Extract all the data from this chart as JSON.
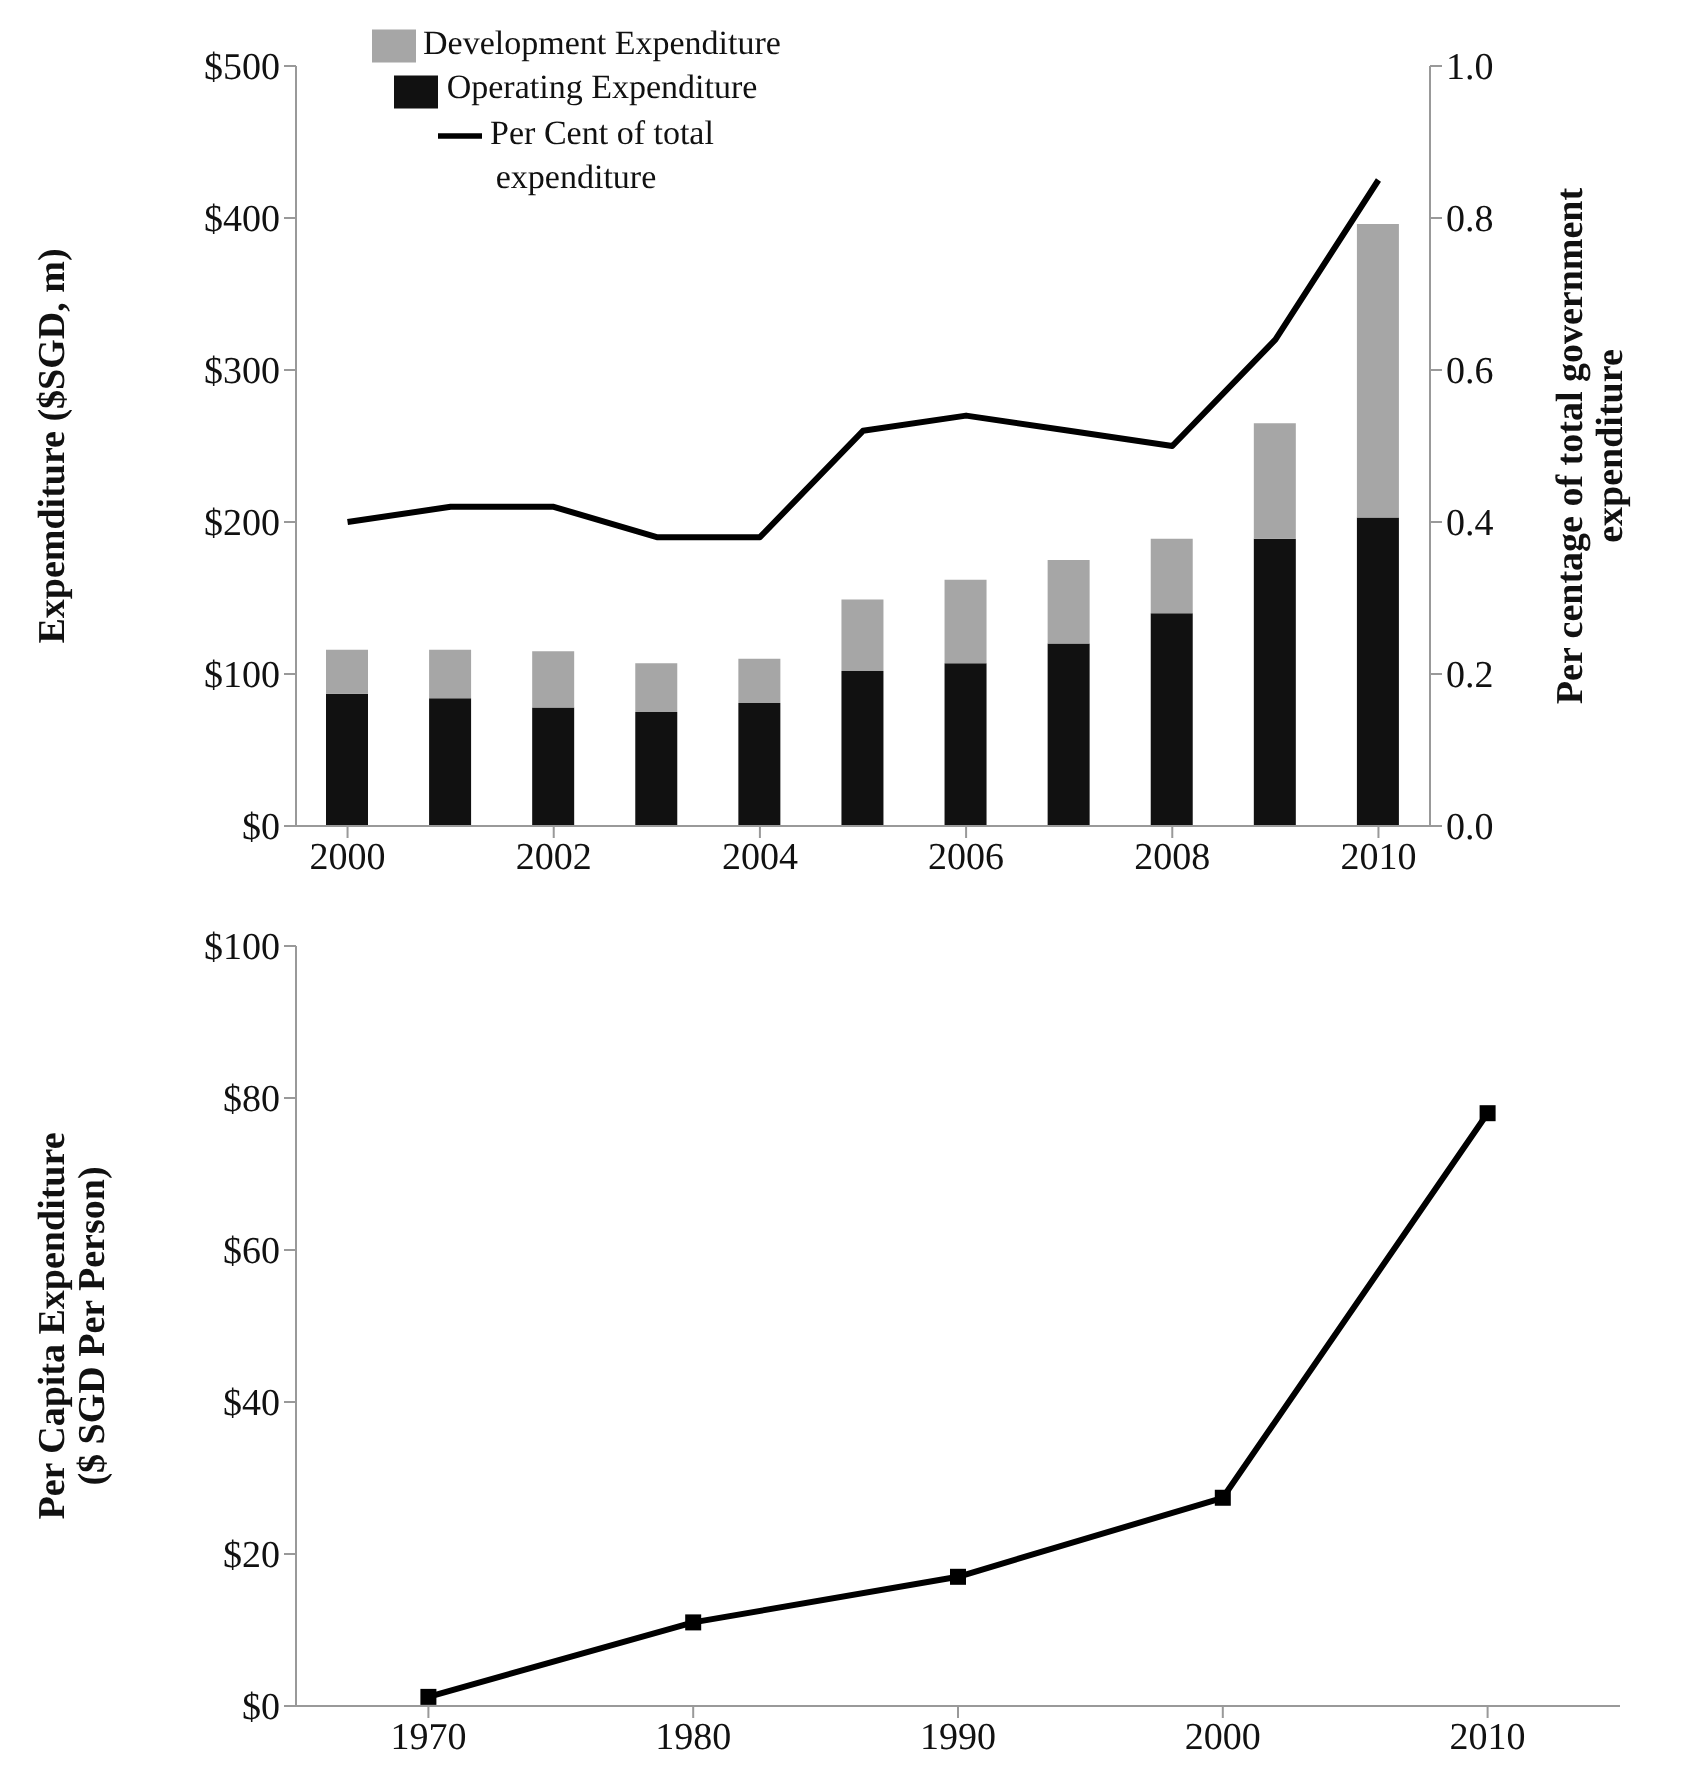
{
  "chart_data": [
    {
      "type": "bar",
      "stacked": true,
      "ylabel": "Expemditure ($SGD, m)",
      "y2label": "Per centage of total government expenditure",
      "x": [
        2000,
        2001,
        2002,
        2003,
        2004,
        2005,
        2006,
        2007,
        2008,
        2009,
        2010
      ],
      "xlim": [
        1999.5,
        2010.5
      ],
      "xticks": [
        2000,
        2002,
        2004,
        2006,
        2008,
        2010
      ],
      "ylim": [
        0,
        500
      ],
      "yticks": [
        {
          "value": 0,
          "label": "$0"
        },
        {
          "value": 100,
          "label": "$100"
        },
        {
          "value": 200,
          "label": "$200"
        },
        {
          "value": 300,
          "label": "$300"
        },
        {
          "value": 400,
          "label": "$400"
        },
        {
          "value": 500,
          "label": "$500"
        }
      ],
      "y2lim": [
        0,
        1
      ],
      "y2ticks": [
        {
          "value": 0,
          "label": "0.0"
        },
        {
          "value": 0.2,
          "label": "0.2"
        },
        {
          "value": 0.4,
          "label": "0.4"
        },
        {
          "value": 0.6,
          "label": "0.6"
        },
        {
          "value": 0.8,
          "label": "0.8"
        },
        {
          "value": 1,
          "label": "1.0"
        }
      ],
      "legend": "top left",
      "grid": false,
      "series": [
        {
          "name": "Operating Expenditure",
          "color": "#111111",
          "values": [
            87,
            84,
            78,
            75,
            81,
            102,
            107,
            120,
            140,
            189,
            203
          ]
        },
        {
          "name": "Development Expenditure",
          "color": "#a6a6a6",
          "values": [
            29,
            32,
            37,
            32,
            29,
            47,
            55,
            55,
            49,
            76,
            193
          ]
        },
        {
          "name": "Per Cent of total expenditure",
          "type": "line",
          "axis": "y2",
          "color": "#000000",
          "values": [
            0.4,
            0.42,
            0.42,
            0.38,
            0.38,
            0.52,
            0.54,
            0.52,
            0.5,
            0.64,
            0.85
          ]
        }
      ]
    },
    {
      "type": "line",
      "ylabel": "Per Capita Expenditure ($ SGD Per Person)",
      "marker": "square",
      "grid": false,
      "x": [
        1970,
        1980,
        1990,
        2000,
        2010
      ],
      "xlim": [
        1965,
        2015
      ],
      "xticks": [
        1970,
        1980,
        1990,
        2000,
        2010
      ],
      "ylim": [
        0,
        100
      ],
      "yticks": [
        {
          "value": 0,
          "label": "$0"
        },
        {
          "value": 20,
          "label": "$20"
        },
        {
          "value": 40,
          "label": "$40"
        },
        {
          "value": 60,
          "label": "$60"
        },
        {
          "value": 80,
          "label": "$80"
        },
        {
          "value": 100,
          "label": "$100"
        }
      ],
      "series": [
        {
          "color": "#000000",
          "values": [
            1.2,
            11,
            17,
            27.4,
            78
          ]
        }
      ]
    }
  ]
}
